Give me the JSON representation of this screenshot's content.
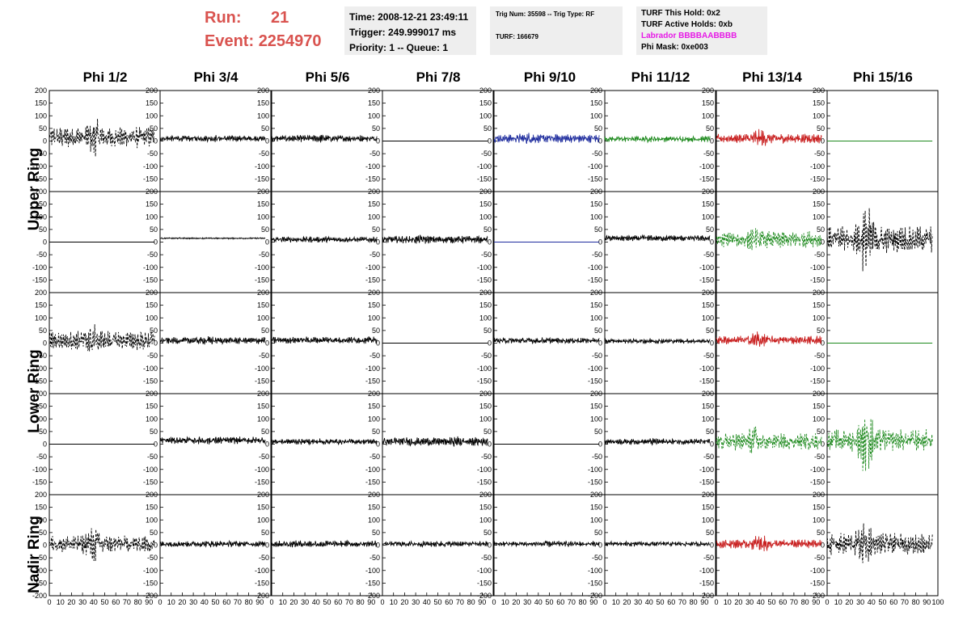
{
  "header": {
    "run_label": "Run:",
    "run_value": "21",
    "event_label": "Event:",
    "event_value": "2254970",
    "time": "Time: 2008-12-21 23:49:11",
    "trigger": "Trigger: 249.999017 ms",
    "priority": "Priority: 1 -- Queue: 1",
    "trig_num": "Trig Num: 35598 -- Trig Type: RF",
    "turf": "TURF: 166679",
    "turf_this_hold": "TURF This Hold: 0x2",
    "turf_active_holds": "TURF Active Holds: 0xb",
    "labrador": "Labrador BBBBAABBBB",
    "phi_mask": "Phi Mask: 0xe003"
  },
  "colors": {
    "header_red": "#d9534f",
    "labrador_magenta": "#e619e6",
    "info_bg": "#eeeeee"
  },
  "chart_data": {
    "type": "line",
    "columns": [
      "Phi 1/2",
      "Phi 3/4",
      "Phi 5/6",
      "Phi 7/8",
      "Phi 9/10",
      "Phi 11/12",
      "Phi 13/14",
      "Phi 15/16"
    ],
    "rows": [
      "Upper Ring",
      "Lower Ring",
      "Nadir Ring"
    ],
    "xlim": [
      0,
      100
    ],
    "ylim": [
      -200,
      200
    ],
    "x_tick_labels": [
      "0",
      "10",
      "20",
      "30",
      "40",
      "50",
      "60",
      "70",
      "80",
      "90",
      "100"
    ],
    "y_tick_labels": [
      "-200",
      "-150",
      "-100",
      "-50",
      "0",
      "50",
      "100",
      "150",
      "200"
    ],
    "waveform_colors": {
      "black": "#000000",
      "blue": "#1f2d9e",
      "green": "#1e8a1e",
      "red": "#c81e1e"
    },
    "panels": [
      {
        "row": 0,
        "col": 0,
        "color": "black",
        "style": "dashed",
        "amplitude": 45,
        "burst_at": 40,
        "burst_gain": 1.9,
        "offset": 15
      },
      {
        "row": 0,
        "col": 1,
        "color": "black",
        "style": "solid",
        "amplitude": 12,
        "burst_at": 50,
        "burst_gain": 1.3,
        "offset": 10
      },
      {
        "row": 0,
        "col": 2,
        "color": "black",
        "style": "solid",
        "amplitude": 14,
        "burst_at": 45,
        "burst_gain": 1.2,
        "offset": 10
      },
      {
        "row": 0,
        "col": 3,
        "color": "black",
        "style": "flat",
        "amplitude": 0,
        "burst_at": 0,
        "burst_gain": 1,
        "offset": 0
      },
      {
        "row": 0,
        "col": 4,
        "color": "blue",
        "style": "solid",
        "amplitude": 18,
        "burst_at": 30,
        "burst_gain": 1.4,
        "offset": 10
      },
      {
        "row": 0,
        "col": 5,
        "color": "green",
        "style": "solid",
        "amplitude": 12,
        "burst_at": 40,
        "burst_gain": 1.2,
        "offset": 8
      },
      {
        "row": 0,
        "col": 6,
        "color": "red",
        "style": "solid",
        "amplitude": 20,
        "burst_at": 38,
        "burst_gain": 2.3,
        "offset": 10
      },
      {
        "row": 0,
        "col": 7,
        "color": "green",
        "style": "flat",
        "amplitude": 0,
        "burst_at": 0,
        "burst_gain": 1,
        "offset": 0
      },
      {
        "row": 1,
        "col": 0,
        "color": "black",
        "style": "flat",
        "amplitude": 0,
        "burst_at": 0,
        "burst_gain": 1,
        "offset": 0
      },
      {
        "row": 1,
        "col": 1,
        "color": "black",
        "style": "solid",
        "amplitude": 3,
        "burst_at": 50,
        "burst_gain": 1,
        "offset": 15
      },
      {
        "row": 1,
        "col": 2,
        "color": "black",
        "style": "solid",
        "amplitude": 12,
        "burst_at": 45,
        "burst_gain": 1.2,
        "offset": 10
      },
      {
        "row": 1,
        "col": 3,
        "color": "black",
        "style": "solid",
        "amplitude": 15,
        "burst_at": 35,
        "burst_gain": 1.4,
        "offset": 10
      },
      {
        "row": 1,
        "col": 4,
        "color": "blue",
        "style": "flat",
        "amplitude": 0,
        "burst_at": 0,
        "burst_gain": 1,
        "offset": 0
      },
      {
        "row": 1,
        "col": 5,
        "color": "black",
        "style": "solid",
        "amplitude": 12,
        "burst_at": 40,
        "burst_gain": 1.2,
        "offset": 15
      },
      {
        "row": 1,
        "col": 6,
        "color": "green",
        "style": "dashed",
        "amplitude": 35,
        "burst_at": 35,
        "burst_gain": 1.5,
        "offset": 10
      },
      {
        "row": 1,
        "col": 7,
        "color": "black",
        "style": "dashed",
        "amplitude": 55,
        "burst_at": 35,
        "burst_gain": 3.0,
        "offset": 10
      },
      {
        "row": 2,
        "col": 0,
        "color": "black",
        "style": "dashed",
        "amplitude": 40,
        "burst_at": 40,
        "burst_gain": 1.8,
        "offset": 10
      },
      {
        "row": 2,
        "col": 1,
        "color": "black",
        "style": "solid",
        "amplitude": 14,
        "burst_at": 45,
        "burst_gain": 1.3,
        "offset": 10
      },
      {
        "row": 2,
        "col": 2,
        "color": "black",
        "style": "solid",
        "amplitude": 14,
        "burst_at": 45,
        "burst_gain": 1.2,
        "offset": 12
      },
      {
        "row": 2,
        "col": 3,
        "color": "black",
        "style": "flat",
        "amplitude": 0,
        "burst_at": 0,
        "burst_gain": 1,
        "offset": 0
      },
      {
        "row": 2,
        "col": 4,
        "color": "black",
        "style": "solid",
        "amplitude": 12,
        "burst_at": 40,
        "burst_gain": 1.2,
        "offset": 10
      },
      {
        "row": 2,
        "col": 5,
        "color": "black",
        "style": "solid",
        "amplitude": 10,
        "burst_at": 40,
        "burst_gain": 1.2,
        "offset": 8
      },
      {
        "row": 2,
        "col": 6,
        "color": "red",
        "style": "solid",
        "amplitude": 18,
        "burst_at": 38,
        "burst_gain": 2.5,
        "offset": 12
      },
      {
        "row": 2,
        "col": 7,
        "color": "green",
        "style": "flat",
        "amplitude": 0,
        "burst_at": 0,
        "burst_gain": 1,
        "offset": 0
      },
      {
        "row": 3,
        "col": 0,
        "color": "black",
        "style": "flat",
        "amplitude": 0,
        "burst_at": 0,
        "burst_gain": 1,
        "offset": 0
      },
      {
        "row": 3,
        "col": 1,
        "color": "black",
        "style": "solid",
        "amplitude": 15,
        "burst_at": 45,
        "burst_gain": 1.2,
        "offset": 15
      },
      {
        "row": 3,
        "col": 2,
        "color": "black",
        "style": "solid",
        "amplitude": 12,
        "burst_at": 45,
        "burst_gain": 1.2,
        "offset": 10
      },
      {
        "row": 3,
        "col": 3,
        "color": "black",
        "style": "solid",
        "amplitude": 18,
        "burst_at": 70,
        "burst_gain": 1.3,
        "offset": 10
      },
      {
        "row": 3,
        "col": 4,
        "color": "black",
        "style": "flat",
        "amplitude": 0,
        "burst_at": 0,
        "burst_gain": 1,
        "offset": 0
      },
      {
        "row": 3,
        "col": 5,
        "color": "black",
        "style": "solid",
        "amplitude": 12,
        "burst_at": 45,
        "burst_gain": 1.3,
        "offset": 10
      },
      {
        "row": 3,
        "col": 6,
        "color": "green",
        "style": "dashed",
        "amplitude": 35,
        "burst_at": 35,
        "burst_gain": 2.2,
        "offset": 10
      },
      {
        "row": 3,
        "col": 7,
        "color": "green",
        "style": "dashed",
        "amplitude": 45,
        "burst_at": 35,
        "burst_gain": 3.2,
        "offset": 15
      },
      {
        "row": 4,
        "col": 0,
        "color": "black",
        "style": "dashed",
        "amplitude": 35,
        "burst_at": 40,
        "burst_gain": 2.5,
        "offset": 5
      },
      {
        "row": 4,
        "col": 1,
        "color": "black",
        "style": "solid",
        "amplitude": 12,
        "burst_at": 45,
        "burst_gain": 1.2,
        "offset": 5
      },
      {
        "row": 4,
        "col": 2,
        "color": "black",
        "style": "solid",
        "amplitude": 14,
        "burst_at": 45,
        "burst_gain": 1.2,
        "offset": 5
      },
      {
        "row": 4,
        "col": 3,
        "color": "black",
        "style": "solid",
        "amplitude": 12,
        "burst_at": 45,
        "burst_gain": 1.2,
        "offset": 5
      },
      {
        "row": 4,
        "col": 4,
        "color": "black",
        "style": "solid",
        "amplitude": 12,
        "burst_at": 45,
        "burst_gain": 1.2,
        "offset": 5
      },
      {
        "row": 4,
        "col": 5,
        "color": "black",
        "style": "solid",
        "amplitude": 10,
        "burst_at": 45,
        "burst_gain": 1.2,
        "offset": 5
      },
      {
        "row": 4,
        "col": 6,
        "color": "red",
        "style": "solid",
        "amplitude": 18,
        "burst_at": 40,
        "burst_gain": 2.5,
        "offset": 5
      },
      {
        "row": 4,
        "col": 7,
        "color": "black",
        "style": "dashed",
        "amplitude": 45,
        "burst_at": 35,
        "burst_gain": 2.5,
        "offset": 5
      }
    ]
  }
}
